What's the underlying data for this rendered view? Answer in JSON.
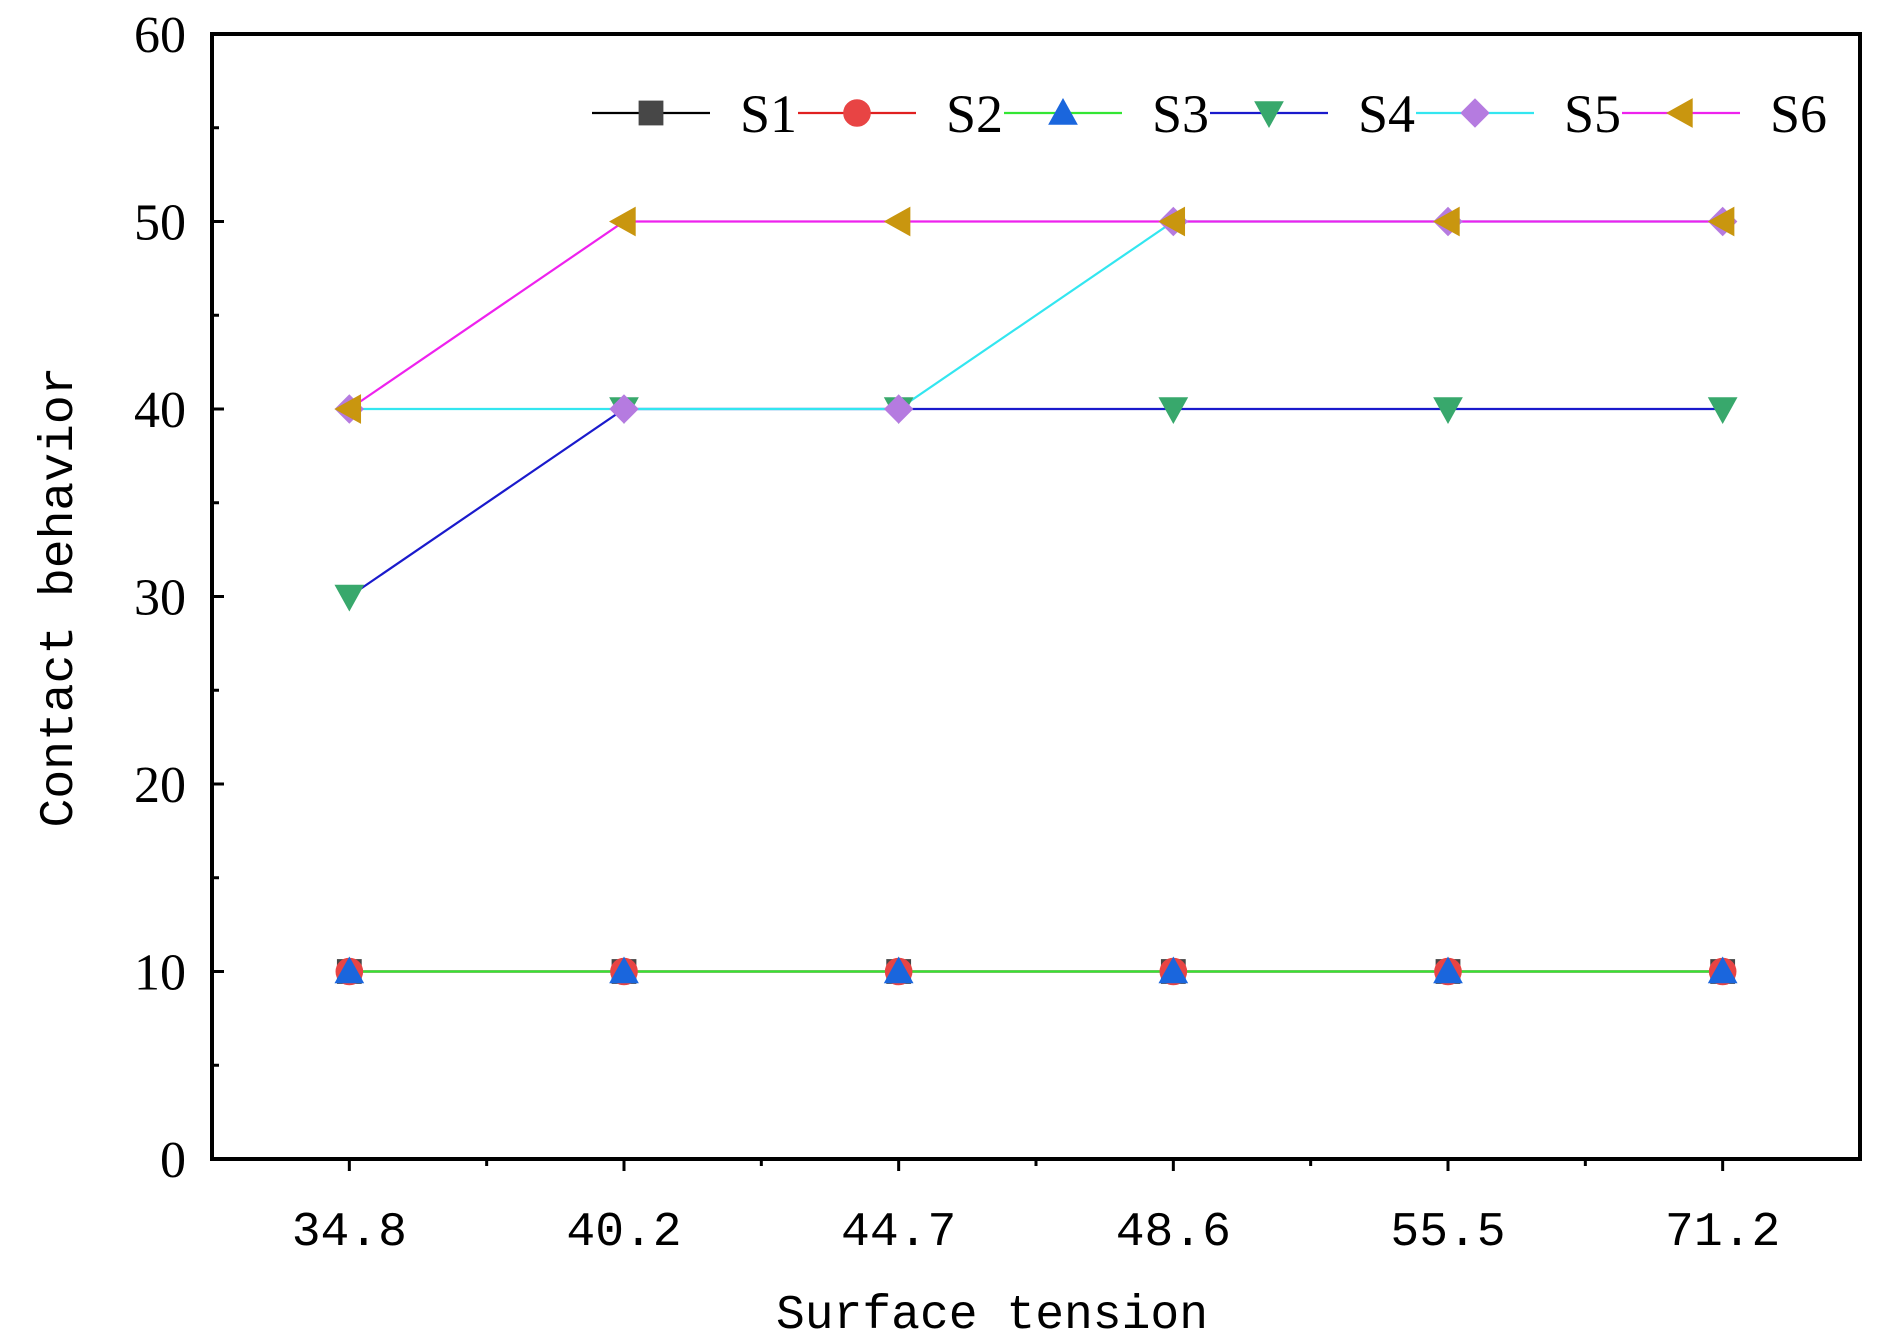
{
  "chart_data": {
    "type": "line",
    "title": "",
    "xlabel": "Surface tension",
    "ylabel": "Contact behavior",
    "categories": [
      "34.8",
      "40.2",
      "44.7",
      "48.6",
      "55.5",
      "71.2"
    ],
    "ylim": [
      0,
      60
    ],
    "yticks": [
      0,
      10,
      20,
      30,
      40,
      50,
      60
    ],
    "grid": false,
    "legend": "top",
    "series": [
      {
        "name": "S1",
        "values": [
          10,
          10,
          10,
          10,
          10,
          10
        ],
        "line_color": "#000000",
        "marker": "square",
        "marker_color": "#474747"
      },
      {
        "name": "S2",
        "values": [
          10,
          10,
          10,
          10,
          10,
          10
        ],
        "line_color": "#e02020",
        "marker": "circle",
        "marker_color": "#e84444"
      },
      {
        "name": "S3",
        "values": [
          10,
          10,
          10,
          10,
          10,
          10
        ],
        "line_color": "#33e633",
        "marker": "triangle-up",
        "marker_color": "#1a66dd"
      },
      {
        "name": "S4",
        "values": [
          30,
          40,
          40,
          40,
          40,
          40
        ],
        "line_color": "#1a1acc",
        "marker": "triangle-down",
        "marker_color": "#38a86c"
      },
      {
        "name": "S5",
        "values": [
          40,
          40,
          40,
          50,
          50,
          50
        ],
        "line_color": "#33e6f0",
        "marker": "diamond",
        "marker_color": "#b57be0"
      },
      {
        "name": "S6",
        "values": [
          40,
          50,
          50,
          50,
          50,
          50
        ],
        "line_color": "#ee22ee",
        "marker": "triangle-left",
        "marker_color": "#c9960f"
      }
    ]
  }
}
